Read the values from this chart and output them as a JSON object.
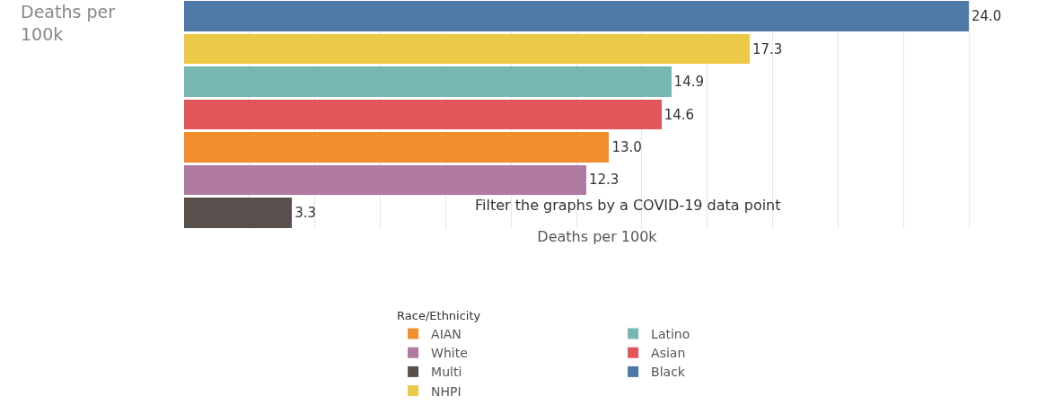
{
  "chart_data": {
    "type": "bar",
    "orientation": "horizontal",
    "stacked": true,
    "ylabel": "Deaths per 100k",
    "xlabel": "Deaths per 100k",
    "legend_title": "Race/Ethnicity",
    "annotations": [
      "Filter the graphs by a COVID-19 data point"
    ],
    "categories": [
      null,
      null,
      null,
      null,
      null,
      null,
      null
    ],
    "series": [
      {
        "name": "AIAN",
        "color": "#f28e2b",
        "values": [
          null,
          null,
          null,
          null,
          13.0,
          null,
          null
        ],
        "value_labels": [
          null,
          null,
          null,
          null,
          "13.0",
          null,
          null
        ]
      },
      {
        "name": "Latino",
        "color": "#76b7b2",
        "values": [
          null,
          null,
          14.9,
          null,
          null,
          null,
          null
        ],
        "value_labels": [
          null,
          null,
          "14.9",
          null,
          null,
          null,
          null
        ]
      },
      {
        "name": "White",
        "color": "#b07aa1",
        "values": [
          null,
          null,
          null,
          null,
          null,
          12.3,
          null
        ],
        "value_labels": [
          null,
          null,
          null,
          null,
          null,
          "12.3",
          null
        ]
      },
      {
        "name": "Asian",
        "color": "#e15759",
        "values": [
          null,
          null,
          null,
          14.6,
          null,
          null,
          null
        ],
        "value_labels": [
          null,
          null,
          null,
          "14.6",
          null,
          null,
          null
        ]
      },
      {
        "name": "Multi",
        "color": "#594f4c",
        "values": [
          null,
          null,
          null,
          null,
          null,
          null,
          3.3
        ],
        "value_labels": [
          null,
          null,
          null,
          null,
          null,
          null,
          "3.3"
        ]
      },
      {
        "name": "Black",
        "color": "#4e79a7",
        "values": [
          24.0,
          null,
          null,
          null,
          null,
          null,
          null
        ],
        "value_labels": [
          "24.0",
          null,
          null,
          null,
          null,
          null,
          null
        ]
      },
      {
        "name": "NHPI",
        "color": "#edc948",
        "values": [
          null,
          17.3,
          null,
          null,
          null,
          null,
          null
        ],
        "value_labels": [
          null,
          "17.3",
          null,
          null,
          null,
          null,
          null
        ]
      }
    ],
    "tick_labels": false,
    "grid": "x",
    "legend": "bottom"
  }
}
